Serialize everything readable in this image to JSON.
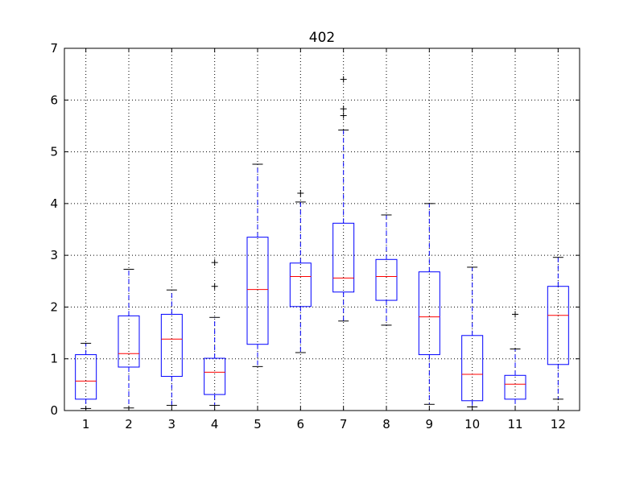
{
  "chart_data": {
    "type": "box",
    "title": "402",
    "xlabel": "",
    "ylabel": "",
    "ylim": [
      0,
      7
    ],
    "yticks": [
      "0",
      "1",
      "2",
      "3",
      "4",
      "5",
      "6",
      "7"
    ],
    "categories": [
      "1",
      "2",
      "3",
      "4",
      "5",
      "6",
      "7",
      "8",
      "9",
      "10",
      "11",
      "12"
    ],
    "grid": true,
    "colors": {
      "box": "#0000ff",
      "median": "#ff0000",
      "whisker": "#0000ff",
      "cap": "#000000",
      "flier": "#000000",
      "grid": "#000000"
    },
    "boxes": [
      {
        "category": "1",
        "whislo": 0.04,
        "q1": 0.22,
        "median": 0.57,
        "q3": 1.08,
        "whishi": 1.3,
        "fliers": []
      },
      {
        "category": "2",
        "whislo": 0.05,
        "q1": 0.84,
        "median": 1.1,
        "q3": 1.83,
        "whishi": 2.73,
        "fliers": []
      },
      {
        "category": "3",
        "whislo": 0.1,
        "q1": 0.66,
        "median": 1.38,
        "q3": 1.86,
        "whishi": 2.33,
        "fliers": []
      },
      {
        "category": "4",
        "whislo": 0.1,
        "q1": 0.31,
        "median": 0.74,
        "q3": 1.01,
        "whishi": 1.8,
        "fliers": [
          2.4,
          2.86
        ]
      },
      {
        "category": "5",
        "whislo": 0.85,
        "q1": 1.28,
        "median": 2.34,
        "q3": 3.35,
        "whishi": 4.76,
        "fliers": []
      },
      {
        "category": "6",
        "whislo": 1.12,
        "q1": 2.01,
        "median": 2.59,
        "q3": 2.85,
        "whishi": 4.03,
        "fliers": [
          4.2
        ]
      },
      {
        "category": "7",
        "whislo": 1.73,
        "q1": 2.29,
        "median": 2.56,
        "q3": 3.62,
        "whishi": 5.42,
        "fliers": [
          5.7,
          5.83,
          6.4
        ]
      },
      {
        "category": "8",
        "whislo": 1.65,
        "q1": 2.13,
        "median": 2.59,
        "q3": 2.92,
        "whishi": 3.78,
        "fliers": []
      },
      {
        "category": "9",
        "whislo": 0.12,
        "q1": 1.08,
        "median": 1.81,
        "q3": 2.68,
        "whishi": 4.0,
        "fliers": []
      },
      {
        "category": "10",
        "whislo": 0.07,
        "q1": 0.19,
        "median": 0.7,
        "q3": 1.45,
        "whishi": 2.77,
        "fliers": []
      },
      {
        "category": "11",
        "whislo": 0.0,
        "q1": 0.22,
        "median": 0.51,
        "q3": 0.68,
        "whishi": 1.19,
        "fliers": [
          1.86
        ]
      },
      {
        "category": "12",
        "whislo": 0.22,
        "q1": 0.89,
        "median": 1.84,
        "q3": 2.4,
        "whishi": 2.96,
        "fliers": []
      }
    ]
  }
}
